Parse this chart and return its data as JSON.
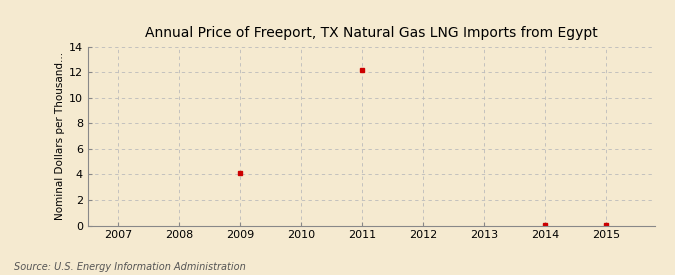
{
  "title": "Annual Price of Freeport, TX Natural Gas LNG Imports from Egypt",
  "ylabel": "Nominal Dollars per Thousand...",
  "xlabel": "",
  "source": "Source: U.S. Energy Information Administration",
  "x_data": [
    2009,
    2011,
    2014,
    2015
  ],
  "y_data": [
    4.14,
    12.17,
    0.05,
    0.05
  ],
  "xlim": [
    2006.5,
    2015.8
  ],
  "ylim": [
    0,
    14
  ],
  "yticks": [
    0,
    2,
    4,
    6,
    8,
    10,
    12,
    14
  ],
  "xticks": [
    2007,
    2008,
    2009,
    2010,
    2011,
    2012,
    2013,
    2014,
    2015
  ],
  "marker_color": "#cc0000",
  "marker_style": "s",
  "marker_size": 3.5,
  "background_color": "#f5ead0",
  "plot_bg_color": "#f5ead0",
  "grid_color": "#bbbbbb",
  "grid_linestyle": "--",
  "title_fontsize": 10,
  "label_fontsize": 7.5,
  "tick_fontsize": 8,
  "source_fontsize": 7
}
